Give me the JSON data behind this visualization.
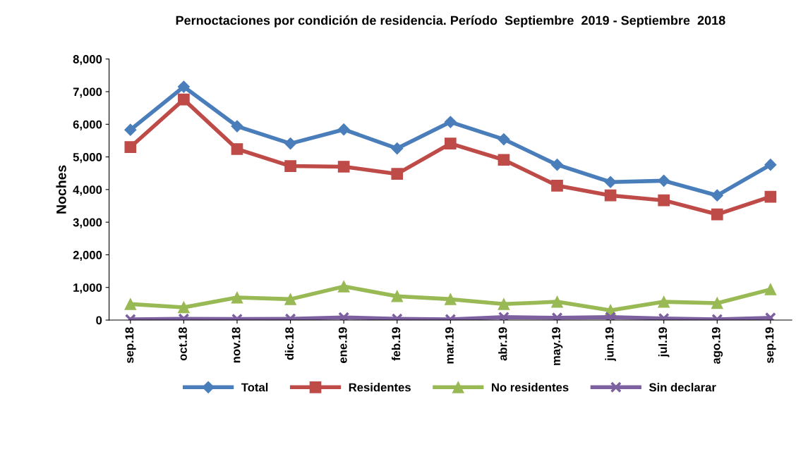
{
  "chart_data": {
    "type": "line",
    "title": "Pernoctaciones por condición de residencia. Período  Septiembre  2019 - Septiembre  2018",
    "ylabel": "Noches",
    "categories": [
      "sep.18",
      "oct.18",
      "nov.18",
      "dic.18",
      "ene.19",
      "feb.19",
      "mar.19",
      "abr.19",
      "may.19",
      "jun.19",
      "jul.19",
      "ago.19",
      "sep.19"
    ],
    "series": [
      {
        "name": "Total",
        "color": "#4a7ebb",
        "marker": "diamond",
        "values": [
          5830,
          7150,
          5940,
          5410,
          5840,
          5260,
          6070,
          5540,
          4760,
          4230,
          4270,
          3820,
          4760
        ]
      },
      {
        "name": "Residentes",
        "color": "#be4b48",
        "marker": "square",
        "values": [
          5300,
          6760,
          5240,
          4720,
          4700,
          4480,
          5410,
          4910,
          4120,
          3820,
          3670,
          3240,
          3780
        ]
      },
      {
        "name": "No residentes",
        "color": "#98b954",
        "marker": "triangle",
        "values": [
          490,
          390,
          690,
          640,
          1030,
          730,
          640,
          490,
          560,
          300,
          560,
          520,
          940
        ]
      },
      {
        "name": "Sin declarar",
        "color": "#7d60a0",
        "marker": "cross",
        "values": [
          20,
          40,
          30,
          40,
          80,
          40,
          20,
          90,
          70,
          90,
          50,
          20,
          70
        ]
      }
    ],
    "ylim": [
      0,
      8000
    ],
    "yticks": [
      {
        "value": 0,
        "label": "0"
      },
      {
        "value": 1000,
        "label": "1,000"
      },
      {
        "value": 2000,
        "label": "2,000"
      },
      {
        "value": 3000,
        "label": "3,000"
      },
      {
        "value": 4000,
        "label": "4,000"
      },
      {
        "value": 5000,
        "label": "5,000"
      },
      {
        "value": 6000,
        "label": "6,000"
      },
      {
        "value": 7000,
        "label": "7,000"
      },
      {
        "value": 8000,
        "label": "8,000"
      }
    ],
    "grid": false,
    "legend": "bottom",
    "line_style": "solid"
  }
}
